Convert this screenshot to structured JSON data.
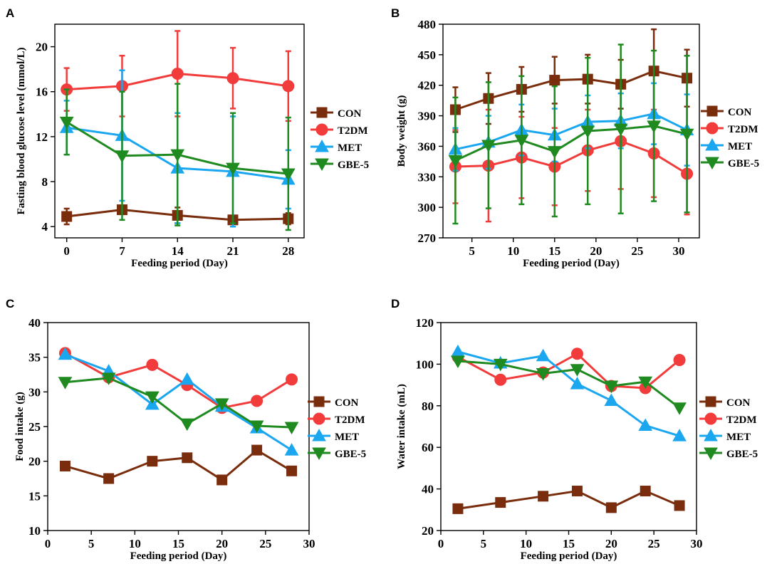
{
  "colors": {
    "CON": "#7a2d0c",
    "T2DM": "#f23b3b",
    "MET": "#1aa7f0",
    "GBE-5": "#1f8a1f"
  },
  "chart_data": [
    {
      "panel": "A",
      "type": "line",
      "xlabel": "Feeding period (Day)",
      "ylabel": "Fasting blood glucose level (mmol/L)",
      "xlim": [
        -1.5,
        30
      ],
      "ylim": [
        3,
        22
      ],
      "xticks": [
        0,
        7,
        14,
        21,
        28
      ],
      "yticks": [
        4,
        8,
        12,
        16,
        20
      ],
      "x": [
        0,
        7,
        14,
        21,
        28
      ],
      "series": [
        {
          "name": "CON",
          "marker": "square",
          "values": [
            4.9,
            5.5,
            5.0,
            4.6,
            4.7
          ],
          "err": [
            0.7,
            0.4,
            0.7,
            0.3,
            0.5
          ]
        },
        {
          "name": "T2DM",
          "marker": "circle",
          "values": [
            16.2,
            16.5,
            17.6,
            17.2,
            16.5
          ],
          "err": [
            1.9,
            2.7,
            3.8,
            2.7,
            3.1
          ]
        },
        {
          "name": "MET",
          "marker": "triangle-up",
          "values": [
            12.8,
            12.1,
            9.2,
            8.9,
            8.2
          ],
          "err": [
            2.4,
            5.8,
            4.9,
            4.9,
            2.6
          ]
        },
        {
          "name": "GBE-5",
          "marker": "triangle-down",
          "values": [
            13.3,
            10.3,
            10.4,
            9.2,
            8.7
          ],
          "err": [
            2.9,
            5.7,
            6.3,
            4.9,
            5.0
          ]
        }
      ],
      "legend": "right"
    },
    {
      "panel": "B",
      "type": "line",
      "xlabel": "Feeding period (Day)",
      "ylabel": "Body weight (g)",
      "xlim": [
        1.5,
        32.5
      ],
      "ylim": [
        270,
        480
      ],
      "xticks": [
        5,
        10,
        15,
        20,
        25,
        30
      ],
      "yticks": [
        270,
        300,
        330,
        360,
        390,
        420,
        450,
        480
      ],
      "x": [
        3,
        7,
        11,
        15,
        19,
        23,
        27,
        31
      ],
      "series": [
        {
          "name": "CON",
          "marker": "square",
          "values": [
            396,
            407,
            416,
            425,
            426,
            421,
            434,
            427
          ],
          "err": [
            22,
            25,
            22,
            23,
            24,
            24,
            41,
            28
          ]
        },
        {
          "name": "T2DM",
          "marker": "circle",
          "values": [
            340,
            341,
            349,
            340,
            356,
            365,
            353,
            333
          ],
          "err": [
            36,
            55,
            40,
            38,
            40,
            47,
            43,
            40
          ]
        },
        {
          "name": "MET",
          "marker": "triangle-up",
          "values": [
            357,
            364,
            376,
            371,
            384,
            385,
            392,
            376
          ],
          "err": [
            21,
            26,
            25,
            26,
            26,
            27,
            30,
            35
          ]
        },
        {
          "name": "GBE-5",
          "marker": "triangle-down",
          "values": [
            346,
            361,
            366,
            355,
            375,
            377,
            380,
            372
          ],
          "err": [
            62,
            62,
            63,
            64,
            72,
            83,
            74,
            77
          ]
        }
      ],
      "legend": "right"
    },
    {
      "panel": "C",
      "type": "line",
      "xlabel": "Feeding period (Day)",
      "ylabel": "Food intake (g)",
      "xlim": [
        0,
        30
      ],
      "ylim": [
        10,
        40
      ],
      "xticks": [
        0,
        5,
        10,
        15,
        20,
        25,
        30
      ],
      "yticks": [
        10,
        15,
        20,
        25,
        30,
        35,
        40
      ],
      "x": [
        2,
        7,
        12,
        16,
        20,
        24,
        28
      ],
      "series": [
        {
          "name": "CON",
          "marker": "square",
          "values": [
            19.3,
            17.5,
            20.0,
            20.5,
            17.3,
            21.6,
            18.6
          ]
        },
        {
          "name": "T2DM",
          "marker": "circle",
          "values": [
            35.6,
            32.1,
            33.9,
            31.0,
            27.7,
            28.7,
            31.8
          ]
        },
        {
          "name": "MET",
          "marker": "triangle-up",
          "values": [
            35.4,
            33.0,
            28.2,
            31.8,
            27.9,
            24.8,
            21.6
          ]
        },
        {
          "name": "GBE-5",
          "marker": "triangle-down",
          "values": [
            31.4,
            32.0,
            29.3,
            25.4,
            28.3,
            25.1,
            24.9
          ]
        }
      ],
      "legend": "right"
    },
    {
      "panel": "D",
      "type": "line",
      "xlabel": "Feeding period (Day)",
      "ylabel": "Water intake (mL)",
      "xlim": [
        0,
        30
      ],
      "ylim": [
        20,
        120
      ],
      "xticks": [
        0,
        5,
        10,
        15,
        20,
        25,
        30
      ],
      "yticks": [
        20,
        40,
        60,
        80,
        100,
        120
      ],
      "x": [
        2,
        7,
        12,
        16,
        20,
        24,
        28
      ],
      "series": [
        {
          "name": "CON",
          "marker": "square",
          "values": [
            30.5,
            33.5,
            36.5,
            39.0,
            31.0,
            39.0,
            32.0
          ]
        },
        {
          "name": "T2DM",
          "marker": "circle",
          "values": [
            103.5,
            92.5,
            96.0,
            105.0,
            89.5,
            88.5,
            102.0
          ]
        },
        {
          "name": "MET",
          "marker": "triangle-up",
          "values": [
            106.0,
            100.5,
            104.0,
            90.5,
            82.5,
            70.5,
            65.5
          ]
        },
        {
          "name": "GBE-5",
          "marker": "triangle-down",
          "values": [
            101.5,
            100.0,
            95.5,
            97.5,
            89.5,
            91.5,
            79.0
          ]
        }
      ],
      "legend": "right"
    }
  ]
}
